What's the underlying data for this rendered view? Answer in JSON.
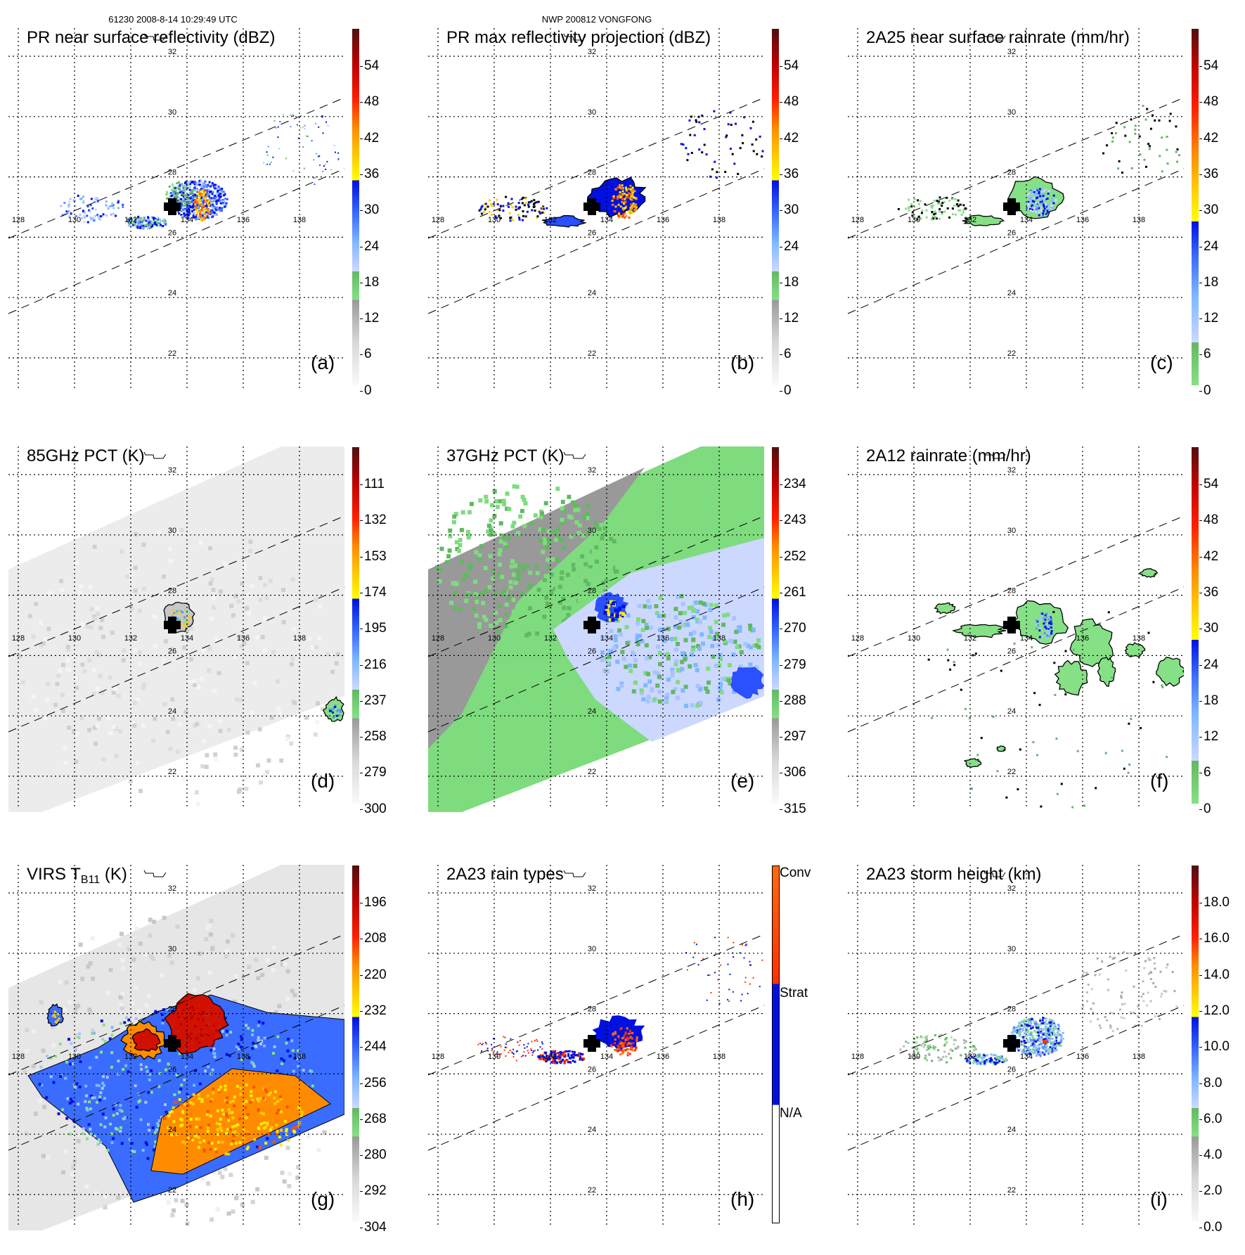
{
  "header": {
    "orbit_time": "61230 2008-8-14 10:29:49 UTC",
    "storm": "NWP 200812 VONGFONG"
  },
  "map": {
    "lat_labels": [
      "32",
      "30",
      "28",
      "26",
      "24",
      "22"
    ],
    "lon_labels": [
      "128",
      "130",
      "132",
      "134",
      "136",
      "138"
    ]
  },
  "colors": {
    "green": "#7edc7e",
    "blue": "#0010e0",
    "light_blue": "#c8d4ff",
    "yellow": "#ffee00",
    "orange": "#ff8c00",
    "red": "#d00000",
    "dark_red": "#501010",
    "gray": "#999999"
  },
  "panels": [
    {
      "id": "a",
      "title": "PR near surface reflectivity (dBZ)",
      "label": "(a)",
      "scale": "standard",
      "colorbar": [
        "54",
        "48",
        "42",
        "36",
        "30",
        "24",
        "18",
        "12",
        "6",
        "0"
      ]
    },
    {
      "id": "b",
      "title": "PR max reflectivity projection (dBZ)",
      "label": "(b)",
      "scale": "standard",
      "colorbar": [
        "54",
        "48",
        "42",
        "36",
        "30",
        "24",
        "18",
        "12",
        "6",
        "0"
      ]
    },
    {
      "id": "c",
      "title": "2A25 near surface rainrate (mm/hr)",
      "label": "(c)",
      "scale": "rain",
      "colorbar": [
        "54",
        "48",
        "42",
        "36",
        "30",
        "24",
        "18",
        "12",
        "6",
        "0"
      ]
    },
    {
      "id": "d",
      "title": "85GHz PCT (K)",
      "label": "(d)",
      "scale": "standard",
      "colorbar": [
        "111",
        "132",
        "153",
        "174",
        "195",
        "216",
        "237",
        "258",
        "279",
        "300"
      ]
    },
    {
      "id": "e",
      "title": "37GHz PCT (K)",
      "label": "(e)",
      "scale": "standard",
      "colorbar": [
        "234",
        "243",
        "252",
        "261",
        "270",
        "279",
        "288",
        "297",
        "306",
        "315"
      ]
    },
    {
      "id": "f",
      "title": "2A12 rainrate (mm/hr)",
      "label": "(f)",
      "scale": "rain",
      "colorbar": [
        "54",
        "48",
        "42",
        "36",
        "30",
        "24",
        "18",
        "12",
        "6",
        "0"
      ]
    },
    {
      "id": "g",
      "title": "VIRS T",
      "title_sub": "B11",
      "title_suffix": " (K)",
      "label": "(g)",
      "scale": "standard",
      "colorbar": [
        "196",
        "208",
        "220",
        "232",
        "244",
        "256",
        "268",
        "280",
        "292",
        "304"
      ]
    },
    {
      "id": "h",
      "title": "2A23 rain types",
      "label": "(h)",
      "scale": "category",
      "colorbar": [
        "Conv",
        "Strat",
        "N/A"
      ]
    },
    {
      "id": "i",
      "title": "2A23 storm height (km)",
      "label": "(i)",
      "scale": "standard",
      "colorbar": [
        "18.0",
        "16.0",
        "14.0",
        "12.0",
        "10.0",
        "8.0",
        "6.0",
        "4.0",
        "2.0",
        "0.0"
      ]
    }
  ]
}
